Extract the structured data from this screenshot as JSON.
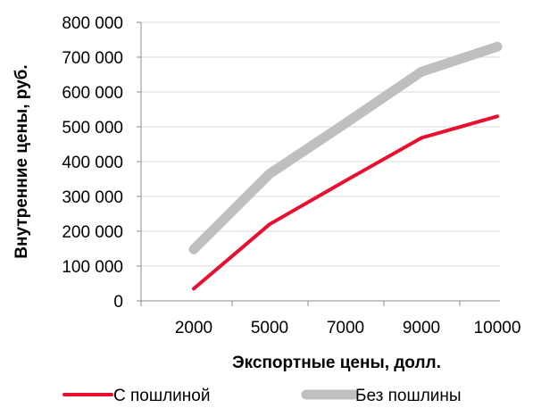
{
  "chart_data": {
    "type": "line",
    "categories": [
      "2000",
      "5000",
      "7000",
      "9000",
      "10000"
    ],
    "series": [
      {
        "name": "С пошлиной",
        "values": [
          35000,
          220000,
          345000,
          468000,
          530000
        ],
        "color": "#e8102e"
      },
      {
        "name": "Без пошлины",
        "values": [
          148000,
          365000,
          510000,
          658000,
          730000
        ],
        "color": "#bfbfbf"
      }
    ],
    "xlabel": "Экспортные цены, долл.",
    "ylabel": "Внутренние цены, руб.",
    "ylim": [
      0,
      800000
    ],
    "yticks": [
      "0",
      "100 000",
      "200 000",
      "300 000",
      "400 000",
      "500 000",
      "600 000",
      "700 000",
      "800 000"
    ],
    "grid": "horizontal",
    "legend_position": "bottom"
  }
}
